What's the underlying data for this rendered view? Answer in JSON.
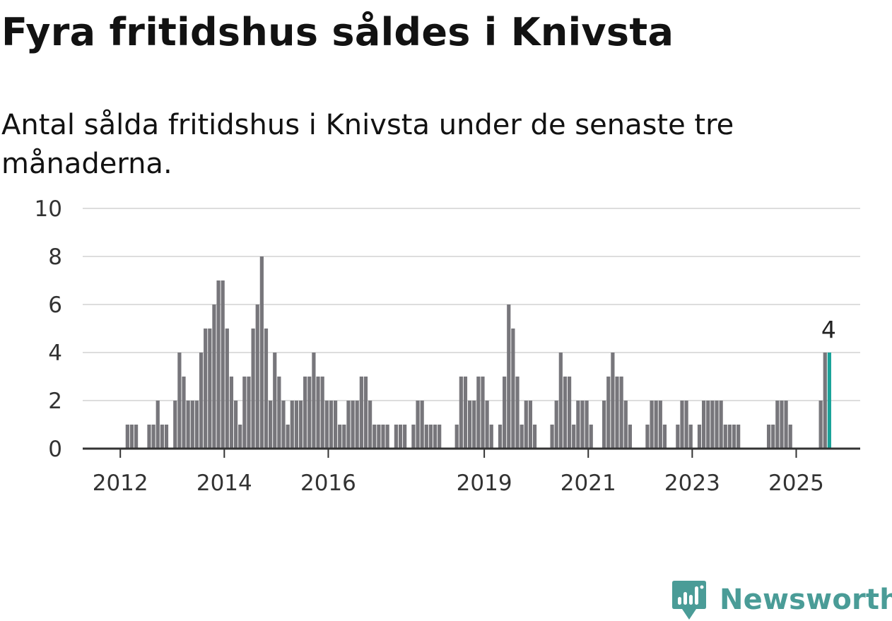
{
  "title": "Fyra fritidshus såldes i Knivsta",
  "subtitle": "Antal sålda fritidshus i Knivsta under de senaste tre månaderna.",
  "brand": {
    "name": "Newsworthy",
    "color": "#4a9c97",
    "icon": "newsworthy-logo-icon"
  },
  "chart_data": {
    "type": "bar",
    "grid": true,
    "ylim": [
      0,
      10
    ],
    "yticks": [
      0,
      2,
      4,
      6,
      8,
      10
    ],
    "xticks": [
      {
        "label": "2012",
        "month": "2012-01"
      },
      {
        "label": "2014",
        "month": "2014-01"
      },
      {
        "label": "2016",
        "month": "2016-01"
      },
      {
        "label": "2019",
        "month": "2019-01"
      },
      {
        "label": "2021",
        "month": "2021-01"
      },
      {
        "label": "2023",
        "month": "2023-01"
      },
      {
        "label": "2025",
        "month": "2025-01"
      }
    ],
    "colors": {
      "bar": "#77767b",
      "highlight": "#1aa39a",
      "grid": "#dddddd",
      "axis": "#333333"
    },
    "highlight_label": "4",
    "months": [
      "2012-01",
      "2012-02",
      "2012-03",
      "2012-04",
      "2012-05",
      "2012-06",
      "2012-07",
      "2012-08",
      "2012-09",
      "2012-10",
      "2012-11",
      "2012-12",
      "2013-01",
      "2013-02",
      "2013-03",
      "2013-04",
      "2013-05",
      "2013-06",
      "2013-07",
      "2013-08",
      "2013-09",
      "2013-10",
      "2013-11",
      "2013-12",
      "2014-01",
      "2014-02",
      "2014-03",
      "2014-04",
      "2014-05",
      "2014-06",
      "2014-07",
      "2014-08",
      "2014-09",
      "2014-10",
      "2014-11",
      "2014-12",
      "2015-01",
      "2015-02",
      "2015-03",
      "2015-04",
      "2015-05",
      "2015-06",
      "2015-07",
      "2015-08",
      "2015-09",
      "2015-10",
      "2015-11",
      "2015-12",
      "2016-01",
      "2016-02",
      "2016-03",
      "2016-04",
      "2016-05",
      "2016-06",
      "2016-07",
      "2016-08",
      "2016-09",
      "2016-10",
      "2016-11",
      "2016-12",
      "2017-01",
      "2017-02",
      "2017-03",
      "2017-04",
      "2017-05",
      "2017-06",
      "2017-07",
      "2017-08",
      "2017-09",
      "2017-10",
      "2017-11",
      "2017-12",
      "2018-01",
      "2018-02",
      "2018-03",
      "2018-04",
      "2018-05",
      "2018-06",
      "2018-07",
      "2018-08",
      "2018-09",
      "2018-10",
      "2018-11",
      "2018-12",
      "2019-01",
      "2019-02",
      "2019-03",
      "2019-04",
      "2019-05",
      "2019-06",
      "2019-07",
      "2019-08",
      "2019-09",
      "2019-10",
      "2019-11",
      "2019-12",
      "2020-01",
      "2020-02",
      "2020-03",
      "2020-04",
      "2020-05",
      "2020-06",
      "2020-07",
      "2020-08",
      "2020-09",
      "2020-10",
      "2020-11",
      "2020-12",
      "2021-01",
      "2021-02",
      "2021-03",
      "2021-04",
      "2021-05",
      "2021-06",
      "2021-07",
      "2021-08",
      "2021-09",
      "2021-10",
      "2021-11",
      "2021-12",
      "2022-01",
      "2022-02",
      "2022-03",
      "2022-04",
      "2022-05",
      "2022-06",
      "2022-07",
      "2022-08",
      "2022-09",
      "2022-10",
      "2022-11",
      "2022-12",
      "2023-01",
      "2023-02",
      "2023-03",
      "2023-04",
      "2023-05",
      "2023-06",
      "2023-07",
      "2023-08",
      "2023-09",
      "2023-10",
      "2023-11",
      "2023-12",
      "2024-01",
      "2024-02",
      "2024-03",
      "2024-04",
      "2024-05",
      "2024-06",
      "2024-07",
      "2024-08",
      "2024-09",
      "2024-10",
      "2024-11",
      "2024-12",
      "2025-01",
      "2025-02",
      "2025-03",
      "2025-04",
      "2025-05",
      "2025-06",
      "2025-07",
      "2025-08"
    ],
    "values": [
      0,
      1,
      1,
      1,
      0,
      0,
      1,
      1,
      2,
      1,
      1,
      0,
      2,
      4,
      3,
      2,
      2,
      2,
      4,
      5,
      5,
      6,
      7,
      7,
      5,
      3,
      2,
      1,
      3,
      3,
      5,
      6,
      8,
      5,
      2,
      4,
      3,
      2,
      1,
      2,
      2,
      2,
      3,
      3,
      4,
      3,
      3,
      2,
      2,
      2,
      1,
      1,
      2,
      2,
      2,
      3,
      3,
      2,
      1,
      1,
      1,
      1,
      0,
      1,
      1,
      1,
      0,
      1,
      2,
      2,
      1,
      1,
      1,
      1,
      0,
      0,
      0,
      1,
      3,
      3,
      2,
      2,
      3,
      3,
      2,
      1,
      0,
      1,
      3,
      6,
      5,
      3,
      1,
      2,
      2,
      1,
      0,
      0,
      0,
      1,
      2,
      4,
      3,
      3,
      1,
      2,
      2,
      2,
      1,
      0,
      0,
      2,
      3,
      4,
      3,
      3,
      2,
      1,
      0,
      0,
      0,
      1,
      2,
      2,
      2,
      1,
      0,
      0,
      1,
      2,
      2,
      1,
      0,
      1,
      2,
      2,
      2,
      2,
      2,
      1,
      1,
      1,
      1,
      0,
      0,
      0,
      0,
      0,
      0,
      1,
      1,
      2,
      2,
      2,
      1,
      0,
      0,
      0,
      0,
      0,
      0,
      2,
      4,
      4
    ],
    "highlight_index": 163
  }
}
